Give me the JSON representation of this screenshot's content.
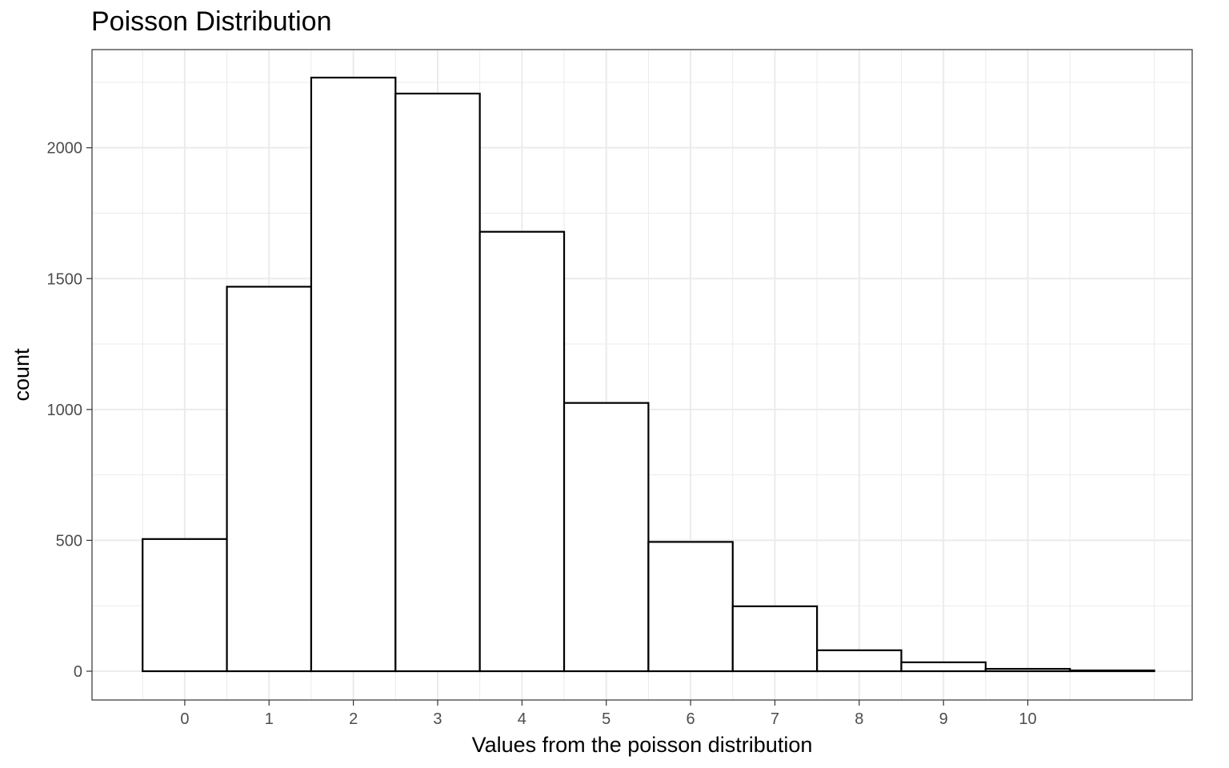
{
  "chart_data": {
    "type": "bar",
    "title": "Poisson Distribution",
    "xlabel": "Values from the poisson distribution",
    "ylabel": "count",
    "x": [
      0,
      1,
      2,
      3,
      4,
      5,
      6,
      7,
      8,
      9,
      10,
      11
    ],
    "values": [
      505,
      1469,
      2268,
      2207,
      1679,
      1025,
      494,
      248,
      80,
      34,
      9,
      3
    ],
    "bin_width": 1,
    "x_ticks": [
      0,
      1,
      2,
      3,
      4,
      5,
      6,
      7,
      8,
      9,
      10
    ],
    "y_ticks": [
      0,
      500,
      1000,
      1500,
      2000
    ],
    "xlim": [
      -1.1,
      11.95
    ],
    "ylim": [
      -110,
      2375
    ],
    "grid": true,
    "bar_fill": "#ffffff",
    "bar_outline": "#000000",
    "grid_color": "#ebebeb",
    "panel_border": "#333333"
  }
}
